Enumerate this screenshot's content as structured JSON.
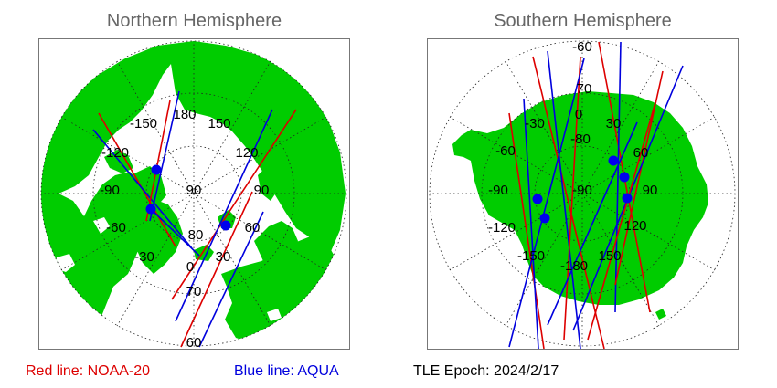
{
  "north": {
    "title": "Northern Hemisphere",
    "lon_labels": [
      "-150",
      "180",
      "150",
      "-120",
      "120",
      "-90",
      "90",
      "90",
      "-60",
      "60",
      "-30",
      "30",
      "0"
    ],
    "lat_labels": [
      "80",
      "70",
      "60"
    ]
  },
  "south": {
    "title": "Southern Hemisphere",
    "lon_labels": [
      "-30",
      "0",
      "30",
      "-60",
      "60",
      "-90",
      "-90",
      "90",
      "-120",
      "120",
      "-150",
      "150",
      "-180"
    ],
    "lat_labels": [
      "-60",
      "70",
      "-80"
    ]
  },
  "legend": {
    "red": "Red line: NOAA-20",
    "blue": "Blue line: AQUA",
    "epoch": "TLE Epoch: 2024/2/17"
  },
  "colors": {
    "land": "#00cc00",
    "red_line": "#dd0000",
    "blue_line": "#0000dd",
    "ocean": "#ffffff"
  }
}
